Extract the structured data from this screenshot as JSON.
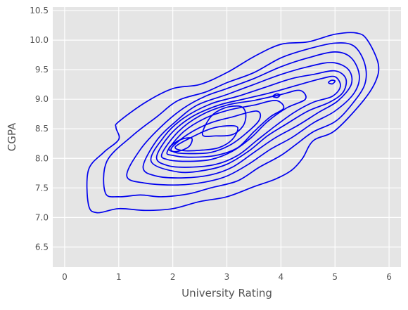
{
  "colors": {
    "plot_background": "#e5e5e5",
    "grid": "#ffffff",
    "contour_line": "#0000ee",
    "text": "#555555"
  },
  "chart_data": {
    "type": "kde-contour",
    "title": "",
    "xlabel": "University Rating",
    "ylabel": "CGPA",
    "xlim": [
      -0.22,
      6.22
    ],
    "ylim": [
      6.16,
      10.56
    ],
    "xticks": [
      0,
      1,
      2,
      3,
      4,
      5,
      6
    ],
    "yticks": [
      6.5,
      7.0,
      7.5,
      8.0,
      8.5,
      9.0,
      9.5,
      10.0,
      10.5
    ],
    "xtick_labels": [
      "0",
      "1",
      "2",
      "3",
      "4",
      "5",
      "6"
    ],
    "ytick_labels": [
      "6.5",
      "7.0",
      "7.5",
      "8.0",
      "8.5",
      "9.0",
      "9.5",
      "10.0",
      "10.5"
    ],
    "grid": true,
    "legend": "none",
    "levels": [
      {
        "level": 1,
        "closed": true,
        "points": [
          [
            0.44,
            7.22
          ],
          [
            0.44,
            7.8
          ],
          [
            0.72,
            8.1
          ],
          [
            1.0,
            8.32
          ],
          [
            0.95,
            8.52
          ],
          [
            1.0,
            8.62
          ],
          [
            1.5,
            8.95
          ],
          [
            2.0,
            9.18
          ],
          [
            2.5,
            9.25
          ],
          [
            3.0,
            9.45
          ],
          [
            3.5,
            9.72
          ],
          [
            4.0,
            9.93
          ],
          [
            4.5,
            9.97
          ],
          [
            5.0,
            10.1
          ],
          [
            5.4,
            10.12
          ],
          [
            5.6,
            10.0
          ],
          [
            5.8,
            9.6
          ],
          [
            5.75,
            9.3
          ],
          [
            5.5,
            8.95
          ],
          [
            5.0,
            8.47
          ],
          [
            4.6,
            8.3
          ],
          [
            4.4,
            8.0
          ],
          [
            4.2,
            7.8
          ],
          [
            3.9,
            7.65
          ],
          [
            3.5,
            7.52
          ],
          [
            3.0,
            7.35
          ],
          [
            2.5,
            7.27
          ],
          [
            2.0,
            7.15
          ],
          [
            1.5,
            7.12
          ],
          [
            1.0,
            7.15
          ],
          [
            0.6,
            7.08
          ]
        ]
      },
      {
        "level": 2,
        "closed": true,
        "points": [
          [
            0.75,
            7.42
          ],
          [
            0.78,
            7.95
          ],
          [
            1.25,
            8.38
          ],
          [
            1.7,
            8.7
          ],
          [
            2.1,
            8.98
          ],
          [
            2.6,
            9.12
          ],
          [
            3.0,
            9.28
          ],
          [
            3.5,
            9.45
          ],
          [
            4.0,
            9.7
          ],
          [
            4.5,
            9.85
          ],
          [
            5.0,
            9.95
          ],
          [
            5.35,
            9.9
          ],
          [
            5.55,
            9.6
          ],
          [
            5.55,
            9.25
          ],
          [
            5.3,
            8.9
          ],
          [
            5.0,
            8.62
          ],
          [
            4.6,
            8.45
          ],
          [
            4.3,
            8.25
          ],
          [
            4.0,
            8.05
          ],
          [
            3.6,
            7.85
          ],
          [
            3.2,
            7.62
          ],
          [
            2.7,
            7.5
          ],
          [
            2.3,
            7.4
          ],
          [
            1.8,
            7.35
          ],
          [
            1.4,
            7.38
          ],
          [
            1.0,
            7.35
          ]
        ]
      },
      {
        "level": 3,
        "closed": true,
        "points": [
          [
            1.15,
            7.7
          ],
          [
            1.4,
            8.15
          ],
          [
            1.8,
            8.55
          ],
          [
            2.2,
            8.85
          ],
          [
            2.6,
            9.05
          ],
          [
            3.0,
            9.18
          ],
          [
            3.5,
            9.35
          ],
          [
            4.0,
            9.55
          ],
          [
            4.5,
            9.7
          ],
          [
            5.0,
            9.8
          ],
          [
            5.3,
            9.7
          ],
          [
            5.45,
            9.4
          ],
          [
            5.35,
            9.1
          ],
          [
            5.0,
            8.8
          ],
          [
            4.6,
            8.6
          ],
          [
            4.2,
            8.35
          ],
          [
            3.8,
            8.15
          ],
          [
            3.4,
            7.9
          ],
          [
            3.0,
            7.7
          ],
          [
            2.6,
            7.6
          ],
          [
            2.1,
            7.55
          ],
          [
            1.5,
            7.58
          ]
        ]
      },
      {
        "level": 4,
        "closed": true,
        "points": [
          [
            1.45,
            7.85
          ],
          [
            1.7,
            8.3
          ],
          [
            2.05,
            8.62
          ],
          [
            2.45,
            8.9
          ],
          [
            3.0,
            9.08
          ],
          [
            3.5,
            9.25
          ],
          [
            4.0,
            9.42
          ],
          [
            4.5,
            9.55
          ],
          [
            4.95,
            9.62
          ],
          [
            5.25,
            9.5
          ],
          [
            5.3,
            9.25
          ],
          [
            5.05,
            8.97
          ],
          [
            4.7,
            8.78
          ],
          [
            4.3,
            8.55
          ],
          [
            3.9,
            8.35
          ],
          [
            3.5,
            8.1
          ],
          [
            3.1,
            7.85
          ],
          [
            2.7,
            7.72
          ],
          [
            2.2,
            7.67
          ],
          [
            1.7,
            7.7
          ]
        ]
      },
      {
        "level": 5,
        "closed": true,
        "points": [
          [
            1.6,
            7.95
          ],
          [
            1.85,
            8.38
          ],
          [
            2.2,
            8.68
          ],
          [
            2.7,
            8.92
          ],
          [
            3.2,
            9.05
          ],
          [
            3.7,
            9.2
          ],
          [
            4.2,
            9.35
          ],
          [
            4.6,
            9.42
          ],
          [
            5.0,
            9.48
          ],
          [
            5.2,
            9.35
          ],
          [
            5.15,
            9.12
          ],
          [
            4.9,
            8.95
          ],
          [
            4.5,
            8.8
          ],
          [
            4.1,
            8.58
          ],
          [
            3.75,
            8.38
          ],
          [
            3.4,
            8.12
          ],
          [
            3.0,
            7.9
          ],
          [
            2.6,
            7.8
          ],
          [
            2.1,
            7.77
          ]
        ]
      },
      {
        "level": 6,
        "closed": true,
        "points": [
          [
            1.7,
            8.02
          ],
          [
            1.95,
            8.4
          ],
          [
            2.35,
            8.7
          ],
          [
            2.85,
            8.9
          ],
          [
            3.3,
            9.0
          ],
          [
            3.85,
            9.12
          ],
          [
            4.35,
            9.25
          ],
          [
            4.75,
            9.35
          ],
          [
            5.0,
            9.38
          ],
          [
            5.1,
            9.22
          ],
          [
            4.95,
            9.05
          ],
          [
            4.6,
            8.95
          ],
          [
            4.25,
            8.78
          ],
          [
            3.9,
            8.55
          ],
          [
            3.55,
            8.3
          ],
          [
            3.2,
            8.05
          ],
          [
            2.8,
            7.9
          ],
          [
            2.3,
            7.85
          ],
          [
            1.9,
            7.88
          ]
        ]
      },
      {
        "level": 7,
        "closed": true,
        "points": [
          [
            1.8,
            8.08
          ],
          [
            2.1,
            8.45
          ],
          [
            2.5,
            8.72
          ],
          [
            3.0,
            8.9
          ],
          [
            3.5,
            8.98
          ],
          [
            4.0,
            9.08
          ],
          [
            4.35,
            9.15
          ],
          [
            4.45,
            9.0
          ],
          [
            4.1,
            8.85
          ],
          [
            3.75,
            8.62
          ],
          [
            3.45,
            8.35
          ],
          [
            3.1,
            8.12
          ],
          [
            2.7,
            7.98
          ],
          [
            2.25,
            7.95
          ],
          [
            1.9,
            7.98
          ]
        ]
      },
      {
        "level": 8,
        "closed": true,
        "points": [
          [
            1.9,
            8.12
          ],
          [
            2.2,
            8.45
          ],
          [
            2.6,
            8.68
          ],
          [
            3.05,
            8.82
          ],
          [
            3.5,
            8.9
          ],
          [
            3.9,
            8.98
          ],
          [
            4.05,
            8.85
          ],
          [
            3.8,
            8.7
          ],
          [
            3.5,
            8.45
          ],
          [
            3.2,
            8.18
          ],
          [
            2.8,
            8.05
          ],
          [
            2.35,
            8.02
          ],
          [
            2.0,
            8.05
          ]
        ]
      },
      {
        "level": 9,
        "closed": true,
        "points": [
          [
            1.98,
            8.18
          ],
          [
            2.3,
            8.42
          ],
          [
            2.7,
            8.6
          ],
          [
            3.1,
            8.7
          ],
          [
            3.55,
            8.8
          ],
          [
            3.6,
            8.65
          ],
          [
            3.35,
            8.42
          ],
          [
            3.05,
            8.22
          ],
          [
            2.7,
            8.1
          ],
          [
            2.3,
            8.08
          ],
          [
            2.05,
            8.1
          ]
        ]
      },
      {
        "level": 10,
        "closed": true,
        "points": [
          [
            2.05,
            8.2
          ],
          [
            2.4,
            8.38
          ],
          [
            2.7,
            8.5
          ],
          [
            3.0,
            8.55
          ],
          [
            3.2,
            8.52
          ],
          [
            3.1,
            8.32
          ],
          [
            2.85,
            8.18
          ],
          [
            2.55,
            8.14
          ],
          [
            2.2,
            8.13
          ]
        ]
      },
      {
        "level": 11,
        "closed": true,
        "points": [
          [
            1.95,
            8.2
          ],
          [
            2.15,
            8.32
          ],
          [
            2.35,
            8.34
          ],
          [
            2.3,
            8.2
          ],
          [
            2.1,
            8.12
          ],
          [
            1.95,
            8.13
          ]
        ]
      },
      {
        "level": 12,
        "closed": true,
        "points": [
          [
            2.55,
            8.4
          ],
          [
            2.7,
            8.7
          ],
          [
            2.95,
            8.85
          ],
          [
            3.25,
            8.88
          ],
          [
            3.35,
            8.75
          ],
          [
            3.3,
            8.55
          ],
          [
            3.1,
            8.4
          ],
          [
            2.8,
            8.38
          ]
        ]
      },
      {
        "level": 13,
        "closed": true,
        "points": [
          [
            3.85,
            9.05
          ],
          [
            3.92,
            9.09
          ],
          [
            3.98,
            9.07
          ],
          [
            3.93,
            9.03
          ]
        ]
      },
      {
        "level": 14,
        "closed": true,
        "points": [
          [
            4.88,
            9.28
          ],
          [
            4.93,
            9.32
          ],
          [
            5.0,
            9.31
          ],
          [
            4.95,
            9.26
          ]
        ]
      }
    ]
  }
}
